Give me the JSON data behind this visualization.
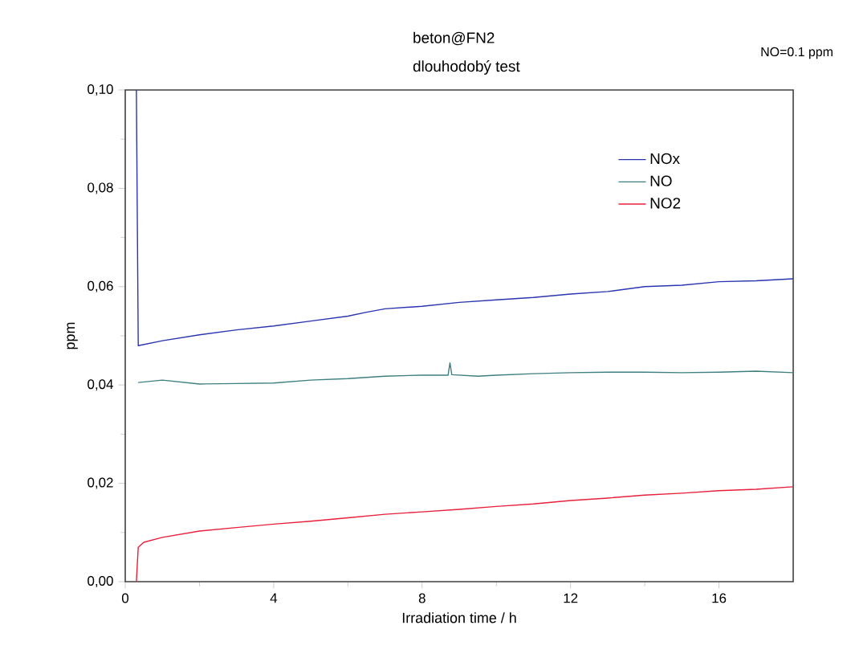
{
  "chart_data": {
    "type": "line",
    "title": "beton@FN2",
    "subtitle": "dlouhodobý test",
    "annotations": [
      "NO=0.1 ppm"
    ],
    "xlabel": "Irradiation time / h",
    "ylabel": "ppm",
    "xlim": [
      0,
      18
    ],
    "xticks": [
      0,
      4,
      8,
      12,
      16
    ],
    "ylim": [
      0,
      0.1
    ],
    "yticks": [
      {
        "value": 0,
        "label": "0,00"
      },
      {
        "value": 0.02,
        "label": "0,02"
      },
      {
        "value": 0.04,
        "label": "0,04"
      },
      {
        "value": 0.06,
        "label": "0,06"
      },
      {
        "value": 0.08,
        "label": "0,08"
      },
      {
        "value": 0.1,
        "label": "0,10"
      }
    ],
    "legend": "top right",
    "grid": false,
    "marker": "none",
    "line_style": "solid",
    "series": [
      {
        "name": "NOx",
        "color": "#2a35b0",
        "x": [
          0.3,
          0.35,
          1,
          2,
          3,
          4,
          5,
          6,
          6.5,
          7,
          8,
          9,
          10,
          11,
          12,
          13,
          14,
          15,
          16,
          17,
          18
        ],
        "values": [
          0.1,
          0.048,
          0.049,
          0.0502,
          0.0512,
          0.052,
          0.053,
          0.054,
          0.0548,
          0.0555,
          0.056,
          0.0568,
          0.0573,
          0.0578,
          0.0585,
          0.059,
          0.06,
          0.0603,
          0.061,
          0.0612,
          0.0616
        ]
      },
      {
        "name": "NO",
        "color": "#3f7f80",
        "x": [
          0.35,
          1,
          2,
          3,
          4,
          5,
          6,
          7,
          8,
          8.7,
          8.75,
          8.8,
          9.5,
          10,
          11,
          12,
          13,
          14,
          15,
          16,
          17,
          18
        ],
        "values": [
          0.0405,
          0.041,
          0.0402,
          0.0403,
          0.0404,
          0.041,
          0.0413,
          0.0418,
          0.042,
          0.042,
          0.0445,
          0.0421,
          0.0418,
          0.042,
          0.0423,
          0.0425,
          0.0426,
          0.0426,
          0.0425,
          0.0426,
          0.0428,
          0.0425
        ]
      },
      {
        "name": "NO2",
        "color": "#e8203c",
        "x": [
          0.3,
          0.35,
          0.5,
          1,
          2,
          3,
          4,
          5,
          6,
          7,
          8,
          9,
          10,
          11,
          12,
          13,
          14,
          15,
          16,
          17,
          18
        ],
        "values": [
          0.0,
          0.007,
          0.008,
          0.009,
          0.0103,
          0.011,
          0.0117,
          0.0123,
          0.013,
          0.0137,
          0.0142,
          0.0147,
          0.0153,
          0.0158,
          0.0165,
          0.017,
          0.0176,
          0.018,
          0.0185,
          0.0188,
          0.0193
        ]
      }
    ]
  }
}
